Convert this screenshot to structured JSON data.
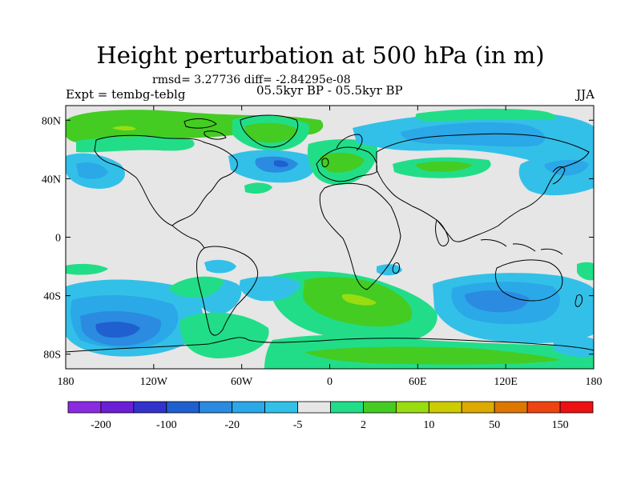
{
  "title": "Height perturbation at 500 hPa (in m)",
  "stats": "rmsd= 3.27736 diff= -2.84295e-08",
  "experiment_label": "Expt = tembg-teblg",
  "period_label": "05.5kyr BP - 05.5kyr BP",
  "season_label": "JJA",
  "axes": {
    "y_ticks": [
      {
        "label": "80N",
        "lat": 80
      },
      {
        "label": "40N",
        "lat": 40
      },
      {
        "label": "0",
        "lat": 0
      },
      {
        "label": "40S",
        "lat": -40
      },
      {
        "label": "80S",
        "lat": -80
      }
    ],
    "x_ticks": [
      {
        "label": "180",
        "lon": -180
      },
      {
        "label": "120W",
        "lon": -120
      },
      {
        "label": "60W",
        "lon": -60
      },
      {
        "label": "0",
        "lon": 0
      },
      {
        "label": "60E",
        "lon": 60
      },
      {
        "label": "120E",
        "lon": 120
      },
      {
        "label": "180",
        "lon": 180
      }
    ]
  },
  "colorbar": {
    "colors": [
      "#8a2be2",
      "#6a1fd6",
      "#3333cc",
      "#1f5fd0",
      "#2a8be0",
      "#2aa8e8",
      "#33c0e8",
      "#e6e6e6",
      "#22dd88",
      "#44cc22",
      "#99dd11",
      "#cccc00",
      "#ddaa00",
      "#dd7700",
      "#ee4411",
      "#ee1111"
    ],
    "labels": [
      "-200",
      "-100",
      "-20",
      "-5",
      "2",
      "10",
      "50",
      "150"
    ],
    "label_boundaries": [
      1,
      3,
      5,
      7,
      9,
      11,
      13,
      15
    ]
  },
  "chart_data": {
    "type": "heatmap",
    "title": "Height perturbation at 500 hPa (in m)",
    "xlim": [
      -180,
      180
    ],
    "ylim": [
      -90,
      90
    ],
    "features": [
      {
        "name": "arctic-north-america-green",
        "sign": "positive",
        "value": 5,
        "lon": -110,
        "lat": 75,
        "rx": 70,
        "ry": 8
      },
      {
        "name": "north-pacific-cyan",
        "sign": "negative",
        "value": -5,
        "lon": -150,
        "lat": 45,
        "rx": 30,
        "ry": 12
      },
      {
        "name": "north-atlantic-cyan",
        "sign": "negative",
        "value": -10,
        "lon": -50,
        "lat": 50,
        "rx": 25,
        "ry": 10
      },
      {
        "name": "north-atlantic-core",
        "sign": "negative",
        "value": -20,
        "lon": -40,
        "lat": 50,
        "rx": 8,
        "ry": 4
      },
      {
        "name": "europe-green",
        "sign": "positive",
        "value": 5,
        "lon": 10,
        "lat": 45,
        "rx": 25,
        "ry": 12
      },
      {
        "name": "siberia-cyan",
        "sign": "negative",
        "value": -5,
        "lon": 100,
        "lat": 75,
        "rx": 55,
        "ry": 10
      },
      {
        "name": "central-asia-green",
        "sign": "positive",
        "value": 5,
        "lon": 75,
        "lat": 48,
        "rx": 25,
        "ry": 8
      },
      {
        "name": "north-pacific-east-cyan",
        "sign": "negative",
        "value": -5,
        "lon": 150,
        "lat": 50,
        "rx": 35,
        "ry": 12
      },
      {
        "name": "south-pacific-blue",
        "sign": "negative",
        "value": -20,
        "lon": -140,
        "lat": -65,
        "rx": 35,
        "ry": 14
      },
      {
        "name": "south-atlantic-green",
        "sign": "positive",
        "value": 10,
        "lon": 25,
        "lat": -55,
        "rx": 35,
        "ry": 14
      },
      {
        "name": "south-atlantic-yellow",
        "sign": "positive",
        "value": 20,
        "lon": 20,
        "lat": -45,
        "rx": 8,
        "ry": 3
      },
      {
        "name": "south-indian-blue",
        "sign": "negative",
        "value": -20,
        "lon": 110,
        "lat": -45,
        "rx": 35,
        "ry": 12
      },
      {
        "name": "antarctic-green",
        "sign": "positive",
        "value": 5,
        "lon": 60,
        "lat": -80,
        "rx": 50,
        "ry": 8
      }
    ]
  }
}
